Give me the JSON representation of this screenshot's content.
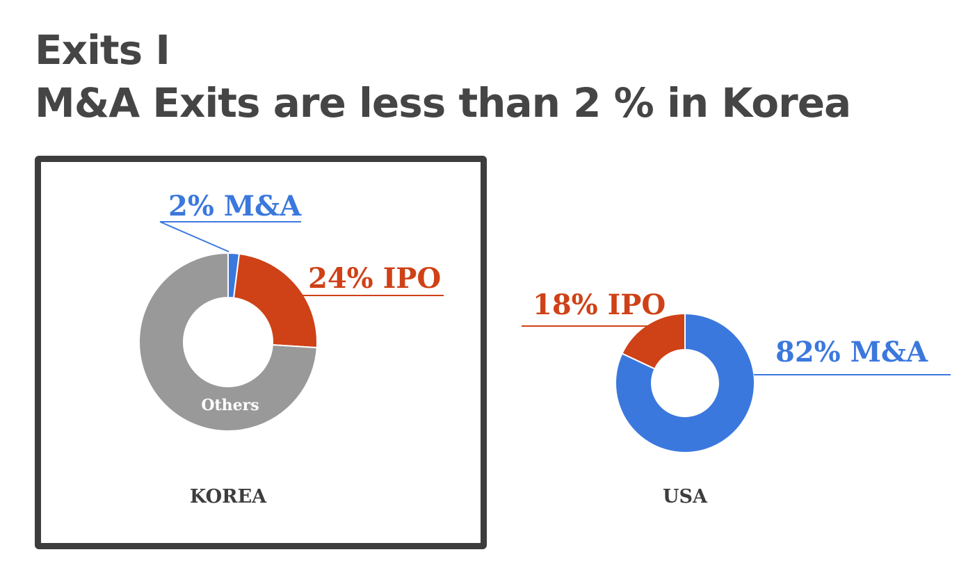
{
  "title": {
    "line1": "Exits I",
    "line2": "M&A Exits are less than 2 % in Korea"
  },
  "colors": {
    "ma": "#3b78dd",
    "ipo": "#cf4117",
    "others": "#999999",
    "text": "#454545",
    "frame": "#3d3d3d"
  },
  "chart_data": [
    {
      "type": "pie",
      "variant": "donut",
      "name": "KOREA",
      "highlighted": true,
      "slices": [
        {
          "key": "ma",
          "label": "2% M&A",
          "value": 2,
          "color": "#3b78dd"
        },
        {
          "key": "ipo",
          "label": "24% IPO",
          "value": 24,
          "color": "#cf4117"
        },
        {
          "key": "others",
          "label": "Others",
          "value": 74,
          "color": "#999999"
        }
      ]
    },
    {
      "type": "pie",
      "variant": "donut",
      "name": "USA",
      "highlighted": false,
      "slices": [
        {
          "key": "ma",
          "label": "82% M&A",
          "value": 82,
          "color": "#3b78dd"
        },
        {
          "key": "ipo",
          "label": "18% IPO",
          "value": 18,
          "color": "#cf4117"
        }
      ]
    }
  ]
}
